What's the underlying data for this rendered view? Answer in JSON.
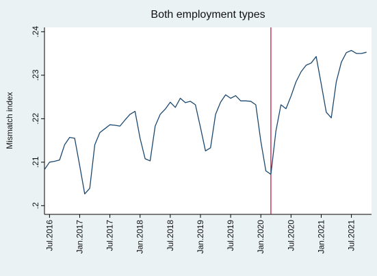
{
  "chart_data": {
    "type": "line",
    "title": "Both employment types",
    "ylabel": "Mismatch index",
    "color": "#1a476f",
    "x": [
      "2016-06",
      "2016-07",
      "2016-08",
      "2016-09",
      "2016-10",
      "2016-11",
      "2016-12",
      "2017-01",
      "2017-02",
      "2017-03",
      "2017-04",
      "2017-05",
      "2017-06",
      "2017-07",
      "2017-08",
      "2017-09",
      "2017-10",
      "2017-11",
      "2017-12",
      "2018-01",
      "2018-02",
      "2018-03",
      "2018-04",
      "2018-05",
      "2018-06",
      "2018-07",
      "2018-08",
      "2018-09",
      "2018-10",
      "2018-11",
      "2018-12",
      "2019-01",
      "2019-02",
      "2019-03",
      "2019-04",
      "2019-05",
      "2019-06",
      "2019-07",
      "2019-08",
      "2019-09",
      "2019-10",
      "2019-11",
      "2019-12",
      "2020-01",
      "2020-02",
      "2020-03",
      "2020-04",
      "2020-05",
      "2020-06",
      "2020-07",
      "2020-08",
      "2020-09",
      "2020-10",
      "2020-11",
      "2020-12",
      "2021-01",
      "2021-02",
      "2021-03",
      "2021-04",
      "2021-05",
      "2021-06",
      "2021-07",
      "2021-08",
      "2021-09",
      "2021-10"
    ],
    "values": [
      0.2083,
      0.21,
      0.2102,
      0.2105,
      0.214,
      0.2157,
      0.2155,
      0.2092,
      0.2027,
      0.204,
      0.214,
      0.2168,
      0.2177,
      0.2186,
      0.2185,
      0.2183,
      0.2197,
      0.221,
      0.2217,
      0.2155,
      0.2108,
      0.2103,
      0.2183,
      0.221,
      0.2222,
      0.2238,
      0.2226,
      0.2247,
      0.2237,
      0.224,
      0.2232,
      0.218,
      0.2126,
      0.2133,
      0.221,
      0.2238,
      0.2255,
      0.2247,
      0.2253,
      0.2241,
      0.2241,
      0.224,
      0.2232,
      0.2148,
      0.208,
      0.2072,
      0.2172,
      0.2232,
      0.2223,
      0.2252,
      0.2285,
      0.2308,
      0.2323,
      0.2328,
      0.2343,
      0.228,
      0.2215,
      0.2202,
      0.2285,
      0.233,
      0.2352,
      0.2357,
      0.235,
      0.235,
      0.2353
    ],
    "xlim": [
      "2016-06",
      "2021-11"
    ],
    "xticks": [
      {
        "value": "2016-07",
        "label": "Jul.2016"
      },
      {
        "value": "2017-01",
        "label": "Jan.2017"
      },
      {
        "value": "2017-07",
        "label": "Jul.2017"
      },
      {
        "value": "2018-01",
        "label": "Jan.2018"
      },
      {
        "value": "2018-07",
        "label": "Jul.2018"
      },
      {
        "value": "2019-01",
        "label": "Jan.2019"
      },
      {
        "value": "2019-07",
        "label": "Jul.2019"
      },
      {
        "value": "2020-01",
        "label": "Jan.2020"
      },
      {
        "value": "2020-07",
        "label": "Jul.2020"
      },
      {
        "value": "2021-01",
        "label": "Jan.2021"
      },
      {
        "value": "2021-07",
        "label": "Jul.2021"
      }
    ],
    "ylim": [
      0.198,
      0.241
    ],
    "yticks": [
      {
        "value": 0.2,
        "label": ".2"
      },
      {
        "value": 0.21,
        "label": ".21"
      },
      {
        "value": 0.22,
        "label": ".22"
      },
      {
        "value": 0.23,
        "label": ".23"
      },
      {
        "value": 0.24,
        "label": ".24"
      }
    ],
    "vline": {
      "x": "2020-03",
      "color": "#c10534"
    }
  }
}
